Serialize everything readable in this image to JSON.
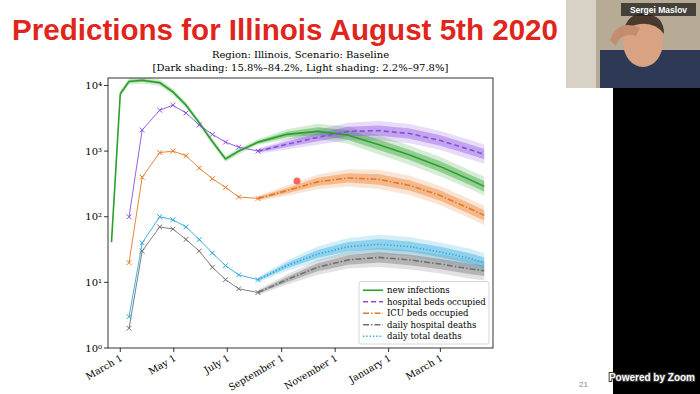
{
  "slide": {
    "title": "Predictions for Illinois August 5th 2020",
    "page": 21
  },
  "zoom": {
    "speaker": "Sergei Maslov",
    "watermark": "Powered by Zoom"
  },
  "chart_data": {
    "type": "line",
    "title": "Region: Illinois, Scenario: Baseline",
    "subtitle": "[Dark shading: 15.8%–84.2%, Light shading: 2.2%–97.8%]",
    "log": "y",
    "grid": false,
    "legend": "lower right",
    "xlim": [
      -14,
      425
    ],
    "ylim": [
      1,
      13000
    ],
    "xticks": [
      {
        "value": 0,
        "label": "March 1"
      },
      {
        "value": 61,
        "label": "May 1"
      },
      {
        "value": 122,
        "label": "July 1"
      },
      {
        "value": 184,
        "label": "September 1"
      },
      {
        "value": 245,
        "label": "November 1"
      },
      {
        "value": 306,
        "label": "January 1"
      },
      {
        "value": 365,
        "label": "March 1"
      }
    ],
    "yticks": [
      {
        "value": 1,
        "label": "10⁰"
      },
      {
        "value": 10,
        "label": "10¹"
      },
      {
        "value": 100,
        "label": "10²"
      },
      {
        "value": 1000,
        "label": "10³"
      },
      {
        "value": 10000,
        "label": "10⁴"
      }
    ],
    "x": [
      -10,
      0,
      10,
      25,
      45,
      60,
      75,
      90,
      105,
      120,
      135,
      157,
      190,
      225,
      260,
      295,
      330,
      365,
      400,
      415
    ],
    "series": [
      {
        "name": "new infections",
        "color": "#2ca02c",
        "line_style": "solid",
        "values": [
          41,
          7500,
          11500,
          12000,
          11000,
          8000,
          5000,
          2700,
          1400,
          760,
          1000,
          1370,
          1800,
          2000,
          1750,
          1250,
          870,
          580,
          360,
          290
        ],
        "dark_lower": [
          39,
          7100,
          11000,
          11400,
          10500,
          7600,
          4800,
          2600,
          1330,
          720,
          950,
          1300,
          1640,
          1740,
          1480,
          1040,
          730,
          480,
          300,
          240
        ],
        "dark_upper": [
          43,
          7900,
          12100,
          12600,
          11600,
          8400,
          5300,
          2800,
          1470,
          800,
          1050,
          1440,
          1980,
          2300,
          2070,
          1500,
          1040,
          700,
          430,
          350
        ],
        "light_lower": [
          37,
          6700,
          10300,
          10700,
          9800,
          7100,
          4500,
          2400,
          1250,
          680,
          890,
          1250,
          1500,
          1540,
          1300,
          890,
          620,
          410,
          260,
          210
        ],
        "light_upper": [
          46,
          8400,
          12900,
          13400,
          12300,
          9000,
          5600,
          3000,
          1570,
          850,
          1120,
          1510,
          2160,
          2600,
          2360,
          1750,
          1220,
          810,
          500,
          410
        ]
      },
      {
        "name": "hospital beds occupied",
        "color": "#8a4fe0",
        "line_style": "dashed",
        "marker": "x",
        "values": [
          null,
          null,
          null,
          null,
          null,
          null,
          null,
          null,
          null,
          null,
          null,
          1000,
          1270,
          1620,
          2000,
          2050,
          1850,
          1450,
          1040,
          900
        ],
        "observed": [
          null,
          null,
          100,
          2100,
          4200,
          5000,
          3800,
          2500,
          1800,
          1370,
          1150,
          1000,
          null,
          null,
          null,
          null,
          null,
          null,
          null,
          null
        ],
        "dark_lower": [
          null,
          null,
          null,
          null,
          null,
          null,
          null,
          null,
          null,
          null,
          null,
          950,
          1150,
          1410,
          1690,
          1710,
          1540,
          1210,
          870,
          750
        ],
        "dark_upper": [
          null,
          null,
          null,
          null,
          null,
          null,
          null,
          null,
          null,
          null,
          null,
          1050,
          1400,
          1860,
          2360,
          2460,
          2220,
          1740,
          1250,
          1080
        ],
        "light_lower": [
          null,
          null,
          null,
          null,
          null,
          null,
          null,
          null,
          null,
          null,
          null,
          910,
          1060,
          1250,
          1480,
          1460,
          1320,
          1040,
          740,
          640
        ],
        "light_upper": [
          null,
          null,
          null,
          null,
          null,
          null,
          null,
          null,
          null,
          null,
          null,
          1100,
          1520,
          2110,
          2700,
          2870,
          2590,
          2030,
          1460,
          1260
        ]
      },
      {
        "name": "ICU beds occupied",
        "color": "#e87722",
        "line_style": "dashdot",
        "marker": "x",
        "values": [
          null,
          null,
          null,
          null,
          null,
          null,
          null,
          null,
          null,
          null,
          null,
          190,
          250,
          340,
          390,
          370,
          300,
          210,
          130,
          105
        ],
        "observed": [
          null,
          null,
          20,
          400,
          950,
          1000,
          850,
          550,
          380,
          280,
          200,
          190,
          null,
          null,
          null,
          null,
          null,
          null,
          null,
          null
        ],
        "dark_lower": [
          null,
          null,
          null,
          null,
          null,
          null,
          null,
          null,
          null,
          null,
          null,
          181,
          227,
          296,
          331,
          308,
          250,
          175,
          108,
          88
        ],
        "dark_upper": [
          null,
          null,
          null,
          null,
          null,
          null,
          null,
          null,
          null,
          null,
          null,
          200,
          275,
          391,
          460,
          444,
          360,
          252,
          156,
          126
        ],
        "light_lower": [
          null,
          null,
          null,
          null,
          null,
          null,
          null,
          null,
          null,
          null,
          null,
          173,
          208,
          262,
          289,
          264,
          214,
          150,
          93,
          75
        ],
        "light_upper": [
          null,
          null,
          null,
          null,
          null,
          null,
          null,
          null,
          null,
          null,
          null,
          209,
          300,
          442,
          527,
          518,
          420,
          294,
          182,
          147
        ]
      },
      {
        "name": "daily hospital deaths",
        "color": "#707070",
        "line_style": "dashdot",
        "marker": "x",
        "values": [
          null,
          null,
          null,
          null,
          null,
          null,
          null,
          null,
          null,
          null,
          null,
          7,
          11,
          17,
          22,
          24,
          22,
          19,
          16,
          15
        ],
        "observed": [
          null,
          null,
          2,
          30,
          70,
          65,
          45,
          30,
          17,
          11,
          8,
          7,
          null,
          null,
          null,
          null,
          null,
          null,
          null,
          null
        ],
        "dark_lower": [
          null,
          null,
          null,
          null,
          null,
          null,
          null,
          null,
          null,
          null,
          null,
          6.7,
          10,
          14.8,
          18.6,
          20,
          18.3,
          15.8,
          13.3,
          12.5
        ],
        "dark_upper": [
          null,
          null,
          null,
          null,
          null,
          null,
          null,
          null,
          null,
          null,
          null,
          7.4,
          12.1,
          19.6,
          26,
          28.8,
          26.4,
          22.8,
          19.2,
          18
        ],
        "light_lower": [
          null,
          null,
          null,
          null,
          null,
          null,
          null,
          null,
          null,
          null,
          null,
          6.4,
          9.2,
          13.1,
          16.3,
          17.1,
          15.7,
          13.6,
          11.4,
          10.7
        ],
        "light_upper": [
          null,
          null,
          null,
          null,
          null,
          null,
          null,
          null,
          null,
          null,
          null,
          7.7,
          13.2,
          22.1,
          29.7,
          33.6,
          30.8,
          26.6,
          22.4,
          21
        ]
      },
      {
        "name": "daily total deaths",
        "color": "#2aa8dc",
        "line_style": "dotted",
        "marker": "x",
        "values": [
          null,
          null,
          null,
          null,
          null,
          null,
          null,
          null,
          null,
          null,
          null,
          11,
          18,
          27,
          35,
          38,
          35,
          29,
          23,
          20
        ],
        "observed": [
          null,
          null,
          3,
          40,
          100,
          90,
          70,
          45,
          28,
          18,
          13,
          11,
          null,
          null,
          null,
          null,
          null,
          null,
          null,
          null
        ],
        "dark_lower": [
          null,
          null,
          null,
          null,
          null,
          null,
          null,
          null,
          null,
          null,
          null,
          10.5,
          16.4,
          23.5,
          29.7,
          31.7,
          29.2,
          24.2,
          19.2,
          16.7
        ],
        "dark_upper": [
          null,
          null,
          null,
          null,
          null,
          null,
          null,
          null,
          null,
          null,
          null,
          11.6,
          19.8,
          31.1,
          41.3,
          45.6,
          42,
          34.8,
          27.6,
          24
        ],
        "light_lower": [
          null,
          null,
          null,
          null,
          null,
          null,
          null,
          null,
          null,
          null,
          null,
          10,
          15,
          20.8,
          25.9,
          27.1,
          25,
          20.7,
          16.4,
          14.3
        ],
        "light_upper": [
          null,
          null,
          null,
          null,
          null,
          null,
          null,
          null,
          null,
          null,
          null,
          12.1,
          21.6,
          35.1,
          47.3,
          53.2,
          49,
          40.6,
          32.2,
          28
        ]
      }
    ]
  }
}
